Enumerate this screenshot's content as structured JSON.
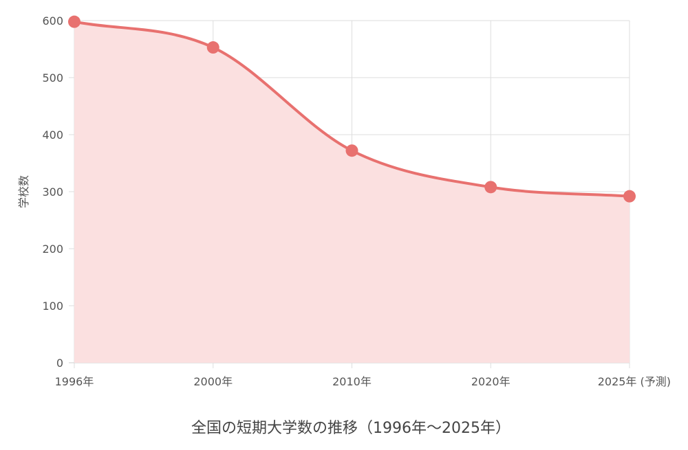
{
  "chart_data": {
    "type": "area",
    "title": "全国の短期大学数の推移（1996年〜2025年）",
    "xlabel": "",
    "ylabel": "学校数",
    "categories": [
      "1996年",
      "2000年",
      "2010年",
      "2020年",
      "2025年 (予測)"
    ],
    "series": [
      {
        "values": [
          598,
          553,
          372,
          308,
          292
        ]
      }
    ],
    "ylim": [
      0,
      600
    ],
    "yticks": [
      0,
      100,
      200,
      300,
      400,
      500,
      600
    ],
    "grid": true,
    "legend": "none",
    "colors": {
      "line": "#e8716f",
      "fill": "#fbe0e0",
      "point": "#e8716f",
      "grid": "#dddddd",
      "axis": "#cccccc"
    }
  }
}
